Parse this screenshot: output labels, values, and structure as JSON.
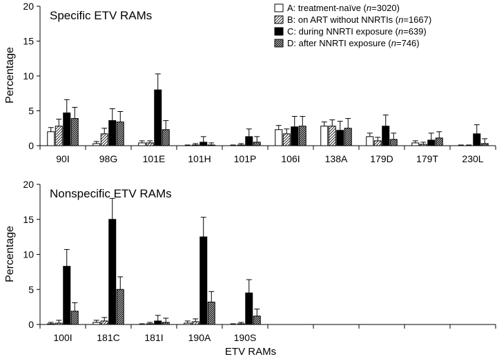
{
  "chart_data": [
    {
      "type": "bar",
      "title": "Specific ETV RAMs",
      "ylabel": "Percentage",
      "xlabel": "",
      "ylim": [
        0,
        20
      ],
      "yticks": [
        0,
        5,
        10,
        15,
        20
      ],
      "grid": false,
      "legend_position": "top-right",
      "categories": [
        "90I",
        "98G",
        "101E",
        "101H",
        "101P",
        "106I",
        "138A",
        "179D",
        "179T",
        "230L"
      ],
      "series": [
        {
          "name": "A: treatment-naïve (n=3020)",
          "style": "white",
          "values": [
            2.0,
            0.3,
            0.4,
            0.0,
            0.0,
            2.3,
            2.8,
            1.3,
            0.4,
            0.0
          ],
          "errors": [
            0.6,
            0.3,
            0.3,
            0.1,
            0.1,
            0.6,
            0.6,
            0.5,
            0.3,
            0.1
          ]
        },
        {
          "name": "B: on ART without NNRTIs (n=1667)",
          "style": "light-hatch",
          "values": [
            2.8,
            1.7,
            0.4,
            0.1,
            0.1,
            1.7,
            2.8,
            0.7,
            0.2,
            0.0
          ],
          "errors": [
            1.0,
            0.8,
            0.3,
            0.2,
            0.2,
            0.7,
            0.9,
            0.5,
            0.3,
            0.1
          ]
        },
        {
          "name": "C: during NNRTI exposure (n=639)",
          "style": "black",
          "values": [
            4.7,
            3.6,
            8.0,
            0.5,
            1.3,
            2.7,
            2.2,
            2.8,
            0.8,
            1.7
          ],
          "errors": [
            1.9,
            1.7,
            2.3,
            0.8,
            1.1,
            1.5,
            1.3,
            1.6,
            1.0,
            1.3
          ]
        },
        {
          "name": "D: after NNRTI exposure (n=746)",
          "style": "dark-hatch",
          "values": [
            3.9,
            3.4,
            2.3,
            0.1,
            0.5,
            2.8,
            2.5,
            0.9,
            1.1,
            0.3
          ],
          "errors": [
            1.6,
            1.5,
            1.3,
            0.3,
            0.8,
            1.4,
            1.4,
            0.9,
            0.9,
            0.7
          ]
        }
      ]
    },
    {
      "type": "bar",
      "title": "Nonspecific ETV RAMs",
      "ylabel": "Percentage",
      "xlabel": "ETV RAMs",
      "ylim": [
        0,
        20
      ],
      "yticks": [
        0,
        5,
        10,
        15,
        20
      ],
      "grid": false,
      "total_slots": 10,
      "categories": [
        "100I",
        "181C",
        "181I",
        "190A",
        "190S"
      ],
      "series": [
        {
          "name": "A: treatment-naïve (n=3020)",
          "style": "white",
          "values": [
            0.1,
            0.3,
            0.0,
            0.2,
            0.0
          ],
          "errors": [
            0.2,
            0.3,
            0.1,
            0.3,
            0.1
          ]
        },
        {
          "name": "B: on ART without NNRTIs (n=1667)",
          "style": "light-hatch",
          "values": [
            0.2,
            0.5,
            0.1,
            0.4,
            0.1
          ],
          "errors": [
            0.4,
            0.5,
            0.2,
            0.4,
            0.2
          ]
        },
        {
          "name": "C: during NNRTI exposure (n=639)",
          "style": "black",
          "values": [
            8.3,
            15.0,
            0.5,
            12.5,
            4.5
          ],
          "errors": [
            2.4,
            3.0,
            0.8,
            2.8,
            1.9
          ]
        },
        {
          "name": "D: after NNRTI exposure (n=746)",
          "style": "dark-hatch",
          "values": [
            1.9,
            5.0,
            0.3,
            3.2,
            1.2
          ],
          "errors": [
            1.2,
            1.8,
            0.6,
            1.5,
            1.0
          ]
        }
      ]
    }
  ],
  "legend": [
    {
      "pre": "A: treatment-naïve (",
      "n": "n",
      "post": "=3020)"
    },
    {
      "pre": "B: on ART without NNRTIs (",
      "n": "n",
      "post": "=1667)"
    },
    {
      "pre": "C: during NNRTI exposure (",
      "n": "n",
      "post": "=639)"
    },
    {
      "pre": "D: after NNRTI exposure (",
      "n": "n",
      "post": "=746)"
    }
  ]
}
